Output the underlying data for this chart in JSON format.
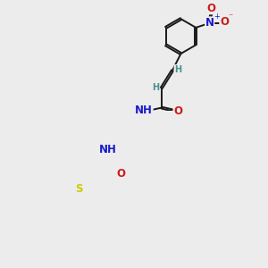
{
  "bg_color": "#ececec",
  "bond_color": "#1a1a1a",
  "bond_width": 1.4,
  "dbo": 0.04,
  "atom_colors": {
    "H": "#4a9090",
    "N": "#1a1acc",
    "O": "#cc1a1a",
    "S": "#cccc00"
  },
  "fs": 8.5,
  "fsh": 7.0
}
